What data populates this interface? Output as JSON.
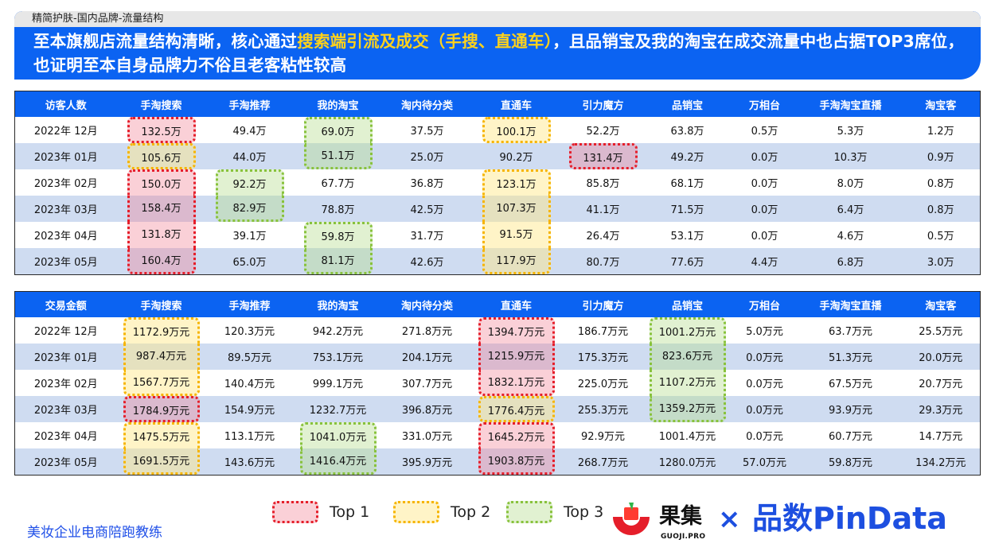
{
  "header": {
    "breadcrumb": "精简护肤-国内品牌-流量结构",
    "headline_part1": "至本旗舰店流量结构清晰，核心通过",
    "headline_highlight": "搜索端引流及成交（手搜、直通车）",
    "headline_part2": "，且品销宝及我的淘宝在成交流量中也占据TOP3席位，也证明至本自身品牌力不俗且老客粘性较高"
  },
  "visitors_table": {
    "headers": [
      "访客人数",
      "手淘搜索",
      "手淘推荐",
      "我的淘宝",
      "淘内待分类",
      "直通车",
      "引力魔方",
      "品销宝",
      "万相台",
      "手淘淘宝直播",
      "淘宝客"
    ],
    "rows": [
      [
        "2022年 12月",
        "132.5万",
        "49.4万",
        "69.0万",
        "37.5万",
        "100.1万",
        "52.2万",
        "63.8万",
        "0.5万",
        "5.3万",
        "1.2万"
      ],
      [
        "2023年 01月",
        "105.6万",
        "44.0万",
        "51.1万",
        "25.0万",
        "90.2万",
        "131.4万",
        "49.2万",
        "0.0万",
        "10.3万",
        "0.9万"
      ],
      [
        "2023年 02月",
        "150.0万",
        "92.2万",
        "67.7万",
        "36.8万",
        "123.1万",
        "85.8万",
        "68.1万",
        "0.0万",
        "8.0万",
        "0.8万"
      ],
      [
        "2023年 03月",
        "158.4万",
        "82.9万",
        "78.8万",
        "42.5万",
        "107.3万",
        "41.1万",
        "71.5万",
        "0.0万",
        "6.4万",
        "0.8万"
      ],
      [
        "2023年 04月",
        "131.8万",
        "39.1万",
        "59.8万",
        "31.7万",
        "91.5万",
        "26.4万",
        "53.1万",
        "0.0万",
        "4.6万",
        "0.5万"
      ],
      [
        "2023年 05月",
        "160.4万",
        "65.0万",
        "81.1万",
        "42.6万",
        "117.9万",
        "80.7万",
        "77.6万",
        "4.4万",
        "6.8万",
        "3.0万"
      ]
    ]
  },
  "sales_table": {
    "headers": [
      "交易金额",
      "手淘搜索",
      "手淘推荐",
      "我的淘宝",
      "淘内待分类",
      "直通车",
      "引力魔方",
      "品销宝",
      "万相台",
      "手淘淘宝直播",
      "淘宝客"
    ],
    "rows": [
      [
        "2022年 12月",
        "1172.9万元",
        "120.3万元",
        "942.2万元",
        "271.8万元",
        "1394.7万元",
        "186.7万元",
        "1001.2万元",
        "5.0万元",
        "63.7万元",
        "25.5万元"
      ],
      [
        "2023年 01月",
        "987.4万元",
        "89.5万元",
        "753.1万元",
        "204.1万元",
        "1215.9万元",
        "175.3万元",
        "823.6万元",
        "0.0万元",
        "51.3万元",
        "20.0万元"
      ],
      [
        "2023年 02月",
        "1567.7万元",
        "140.4万元",
        "999.1万元",
        "307.7万元",
        "1832.1万元",
        "225.0万元",
        "1107.2万元",
        "0.0万元",
        "67.5万元",
        "20.7万元"
      ],
      [
        "2023年 03月",
        "1784.9万元",
        "154.9万元",
        "1232.7万元",
        "396.8万元",
        "1776.4万元",
        "255.3万元",
        "1359.2万元",
        "0.0万元",
        "93.9万元",
        "29.3万元"
      ],
      [
        "2023年 04月",
        "1475.5万元",
        "113.1万元",
        "1041.0万元",
        "331.0万元",
        "1645.2万元",
        "92.9万元",
        "1001.4万元",
        "0.0万元",
        "60.7万元",
        "14.7万元"
      ],
      [
        "2023年 05月",
        "1691.5万元",
        "143.6万元",
        "1416.4万元",
        "395.9万元",
        "1903.8万元",
        "268.7万元",
        "1280.0万元",
        "57.0万元",
        "59.8万元",
        "134.2万元"
      ]
    ]
  },
  "legend": {
    "top1": "Top 1",
    "top2": "Top 2",
    "top3": "Top 3",
    "colors": {
      "top1": "#e51e2a",
      "top2": "#f6b400",
      "top3": "#88c23c"
    }
  },
  "footer": {
    "left_text": "美妆企业电商陪跑教练",
    "brand_name": "果集",
    "brand_domain": "GUOJI.PRO",
    "times": "×",
    "partner": "品数PinData"
  }
}
